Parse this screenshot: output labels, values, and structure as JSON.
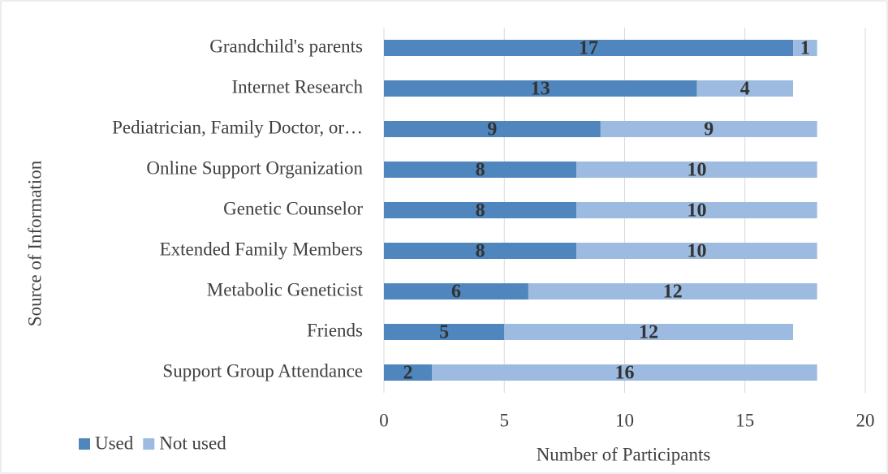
{
  "chart_data": {
    "type": "stacked-barh",
    "categories": [
      "Grandchild's parents",
      "Internet Research",
      "Pediatrician, Family Doctor, or…",
      "Online Support Organization",
      "Genetic Counselor",
      "Extended Family Members",
      "Metabolic Geneticist",
      "Friends",
      "Support Group Attendance"
    ],
    "series": [
      {
        "name": "Used",
        "color": "#4e86bd",
        "values": [
          17,
          13,
          9,
          8,
          8,
          8,
          6,
          5,
          2
        ]
      },
      {
        "name": "Not used",
        "color": "#9dbbe0",
        "values": [
          1,
          4,
          9,
          10,
          10,
          10,
          12,
          12,
          16
        ]
      }
    ],
    "xlim": [
      0,
      20
    ],
    "xticks": [
      0,
      5,
      10,
      15,
      20
    ],
    "grid": true,
    "legend": "bottom-left",
    "xlabel": "Number of Participants",
    "ylabel": "Source of Information"
  }
}
